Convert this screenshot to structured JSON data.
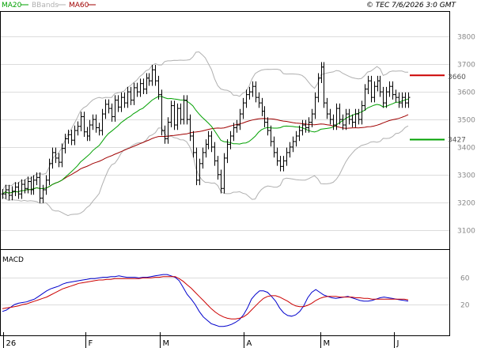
{
  "header": {
    "legend": [
      {
        "label": "MA20",
        "color": "#00a000"
      },
      {
        "label": "BBands",
        "color": "#b0b0b0"
      },
      {
        "label": "MA60",
        "color": "#a00000"
      }
    ],
    "copyright": "© TEC 7/6/2026 3:0 GMT"
  },
  "colors": {
    "price": "#000000",
    "ma20": "#00a000",
    "ma60": "#a00000",
    "bbands": "#b0b0b0",
    "macd": "#0000cc",
    "signal": "#cc0000",
    "resistance": "#cc0000",
    "support": "#00a000",
    "grid": "#dcdcdc"
  },
  "chart_data": [
    {
      "type": "candlestick",
      "title": "",
      "ylim": [
        3030,
        3890
      ],
      "yticks": [
        3100,
        3200,
        3300,
        3400,
        3500,
        3600,
        3700,
        3800
      ],
      "xticks": [
        "26",
        "F",
        "M",
        "A",
        "M",
        "J"
      ],
      "levels": [
        {
          "name": "resistance",
          "value": 3660,
          "label": "3660"
        },
        {
          "name": "support",
          "value": 3427,
          "label": "3427"
        }
      ],
      "close": [
        3230,
        3245,
        3225,
        3240,
        3255,
        3230,
        3265,
        3250,
        3275,
        3245,
        3280,
        3290,
        3215,
        3245,
        3280,
        3340,
        3380,
        3360,
        3345,
        3395,
        3430,
        3445,
        3425,
        3460,
        3475,
        3510,
        3455,
        3440,
        3480,
        3500,
        3470,
        3460,
        3520,
        3555,
        3540,
        3510,
        3570,
        3545,
        3580,
        3560,
        3600,
        3570,
        3615,
        3600,
        3630,
        3610,
        3650,
        3640,
        3680,
        3640,
        3590,
        3460,
        3430,
        3490,
        3550,
        3480,
        3540,
        3500,
        3570,
        3500,
        3440,
        3380,
        3280,
        3340,
        3380,
        3410,
        3440,
        3400,
        3350,
        3300,
        3250,
        3360,
        3410,
        3440,
        3470,
        3480,
        3520,
        3560,
        3590,
        3600,
        3620,
        3580,
        3560,
        3530,
        3490,
        3460,
        3420,
        3380,
        3350,
        3330,
        3350,
        3380,
        3400,
        3420,
        3440,
        3460,
        3480,
        3470,
        3490,
        3520,
        3580,
        3650,
        3690,
        3560,
        3520,
        3500,
        3480,
        3540,
        3500,
        3480,
        3520,
        3500,
        3490,
        3520,
        3500,
        3550,
        3610,
        3640,
        3580,
        3620,
        3640,
        3600,
        3560,
        3600,
        3620,
        3590,
        3580,
        3560,
        3580,
        3560,
        3580
      ]
    },
    {
      "type": "line",
      "title": "MACD",
      "series": [
        {
          "name": "MACD",
          "values": [
            10,
            12,
            16,
            20,
            22,
            23,
            24,
            26,
            28,
            32,
            36,
            40,
            43,
            45,
            47,
            50,
            52,
            53,
            54,
            55,
            56,
            57,
            58,
            58,
            59,
            60,
            60,
            61,
            61,
            62,
            61,
            60,
            60,
            60,
            59,
            60,
            60,
            61,
            62,
            63,
            64,
            64,
            62,
            60,
            55,
            45,
            35,
            28,
            20,
            10,
            2,
            -3,
            -8,
            -10,
            -12,
            -12,
            -11,
            -9,
            -6,
            -2,
            5,
            15,
            28,
            35,
            40,
            40,
            38,
            32,
            25,
            15,
            8,
            4,
            3,
            5,
            10,
            18,
            30,
            38,
            42,
            38,
            34,
            32,
            30,
            29,
            30,
            31,
            32,
            30,
            28,
            26,
            25,
            25,
            26,
            28,
            30,
            31,
            30,
            29,
            28,
            27,
            26,
            25
          ]
        },
        {
          "name": "Signal",
          "values": [
            14,
            15,
            16,
            17,
            18,
            20,
            21,
            23,
            25,
            27,
            29,
            31,
            34,
            37,
            40,
            43,
            45,
            47,
            49,
            51,
            52,
            53,
            54,
            55,
            56,
            56,
            57,
            57,
            58,
            58,
            58,
            58,
            58,
            58,
            58,
            59,
            59,
            59,
            60,
            60,
            61,
            61,
            61,
            61,
            58,
            54,
            49,
            44,
            38,
            32,
            26,
            20,
            14,
            9,
            5,
            2,
            0,
            -1,
            -1,
            0,
            2,
            6,
            12,
            18,
            24,
            29,
            32,
            33,
            33,
            31,
            28,
            25,
            21,
            18,
            17,
            17,
            19,
            22,
            26,
            29,
            31,
            32,
            32,
            32,
            31,
            31,
            31,
            31,
            30,
            30,
            29,
            29,
            28,
            28,
            28,
            28,
            28,
            28,
            28,
            28,
            28,
            27
          ]
        }
      ],
      "ylim": [
        -25,
        100
      ],
      "yticks": [
        20,
        60
      ]
    }
  ]
}
